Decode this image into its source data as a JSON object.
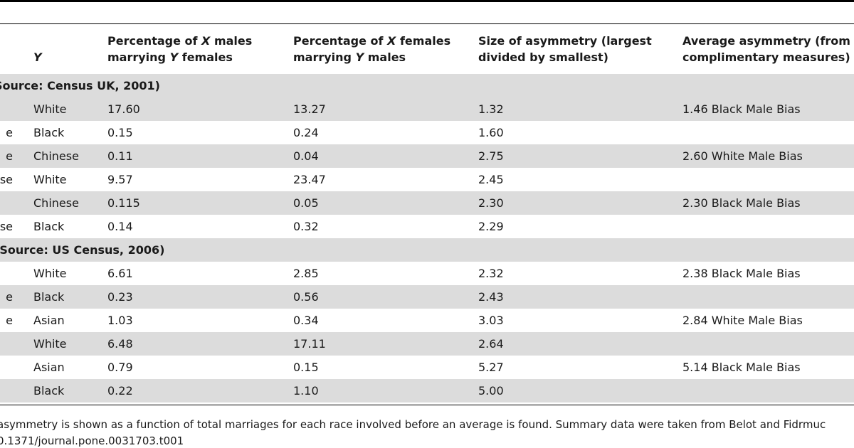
{
  "table": {
    "headers": {
      "y": "Y",
      "col1": [
        "Percentage of X males",
        "marrying Y females"
      ],
      "col2": [
        "Percentage of X females",
        "marrying Y males"
      ],
      "col3": [
        "Size of asymmetry (largest",
        "divided by smallest)"
      ],
      "col4": [
        "Average asymmetry (from",
        "complimentary measures)"
      ]
    },
    "rows": [
      {
        "kind": "section",
        "title": "Source: Census UK, 2001)"
      },
      {
        "kind": "data",
        "x": "",
        "y": "White",
        "v1": "17.60",
        "v2": "13.27",
        "v3": "1.32",
        "v4": "1.46 Black Male Bias"
      },
      {
        "kind": "data",
        "x": "e",
        "y": "Black",
        "v1": "0.15",
        "v2": "0.24",
        "v3": "1.60",
        "v4": ""
      },
      {
        "kind": "data",
        "x": "e",
        "y": "Chinese",
        "v1": "0.11",
        "v2": "0.04",
        "v3": "2.75",
        "v4": "2.60 White Male Bias"
      },
      {
        "kind": "data",
        "x": "se",
        "y": "White",
        "v1": "9.57",
        "v2": "23.47",
        "v3": "2.45",
        "v4": ""
      },
      {
        "kind": "data",
        "x": "",
        "y": "Chinese",
        "v1": "0.115",
        "v2": "0.05",
        "v3": "2.30",
        "v4": "2.30 Black Male Bias"
      },
      {
        "kind": "data",
        "x": "se",
        "y": "Black",
        "v1": "0.14",
        "v2": "0.32",
        "v3": "2.29",
        "v4": ""
      },
      {
        "kind": "section",
        "title": "(Source: US Census, 2006)"
      },
      {
        "kind": "data",
        "x": "",
        "y": "White",
        "v1": "6.61",
        "v2": "2.85",
        "v3": "2.32",
        "v4": "2.38 Black Male Bias"
      },
      {
        "kind": "data",
        "x": "e",
        "y": "Black",
        "v1": "0.23",
        "v2": "0.56",
        "v3": "2.43",
        "v4": ""
      },
      {
        "kind": "data",
        "x": "e",
        "y": "Asian",
        "v1": "1.03",
        "v2": "0.34",
        "v3": "3.03",
        "v4": "2.84 White Male Bias"
      },
      {
        "kind": "data",
        "x": "",
        "y": "White",
        "v1": "6.48",
        "v2": "17.11",
        "v3": "2.64",
        "v4": ""
      },
      {
        "kind": "data",
        "x": "",
        "y": "Asian",
        "v1": "0.79",
        "v2": "0.15",
        "v3": "5.27",
        "v4": "5.14 Black Male Bias"
      },
      {
        "kind": "data",
        "x": "",
        "y": "Black",
        "v1": "0.22",
        "v2": "1.10",
        "v3": "5.00",
        "v4": ""
      }
    ]
  },
  "footnote": {
    "line1": "asymmetry is shown as a function of total marriages for each race involved before an average is found. Summary data were taken from Belot and Fidrmuc",
    "line2": "0.1371/journal.pone.0031703.t001"
  }
}
